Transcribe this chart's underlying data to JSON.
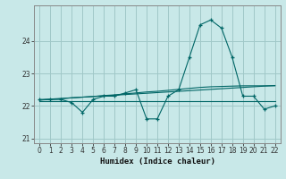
{
  "title": "",
  "xlabel": "Humidex (Indice chaleur)",
  "ylabel": "",
  "bg_color": "#c8e8e8",
  "line_color": "#006666",
  "grid_color": "#a0c8c8",
  "xlim": [
    -0.5,
    22.5
  ],
  "ylim": [
    20.85,
    25.1
  ],
  "yticks": [
    21,
    22,
    23,
    24
  ],
  "xticks": [
    0,
    1,
    2,
    3,
    4,
    5,
    6,
    7,
    8,
    9,
    10,
    11,
    12,
    13,
    14,
    15,
    16,
    17,
    18,
    19,
    20,
    21,
    22
  ],
  "main_series": [
    22.2,
    22.2,
    22.2,
    22.1,
    21.8,
    22.2,
    22.3,
    22.3,
    22.4,
    22.5,
    21.6,
    21.6,
    22.3,
    22.5,
    23.5,
    24.5,
    24.65,
    24.4,
    23.5,
    22.3,
    22.3,
    21.9,
    22.0
  ],
  "trend1": [
    22.18,
    22.21,
    22.23,
    22.25,
    22.27,
    22.29,
    22.31,
    22.33,
    22.35,
    22.37,
    22.39,
    22.41,
    22.43,
    22.45,
    22.47,
    22.49,
    22.51,
    22.53,
    22.55,
    22.57,
    22.59,
    22.61,
    22.63
  ],
  "trend2": [
    22.15,
    22.15,
    22.15,
    22.15,
    22.15,
    22.15,
    22.15,
    22.15,
    22.15,
    22.15,
    22.15,
    22.15,
    22.15,
    22.15,
    22.15,
    22.15,
    22.15,
    22.15,
    22.15,
    22.15,
    22.15,
    22.15,
    22.15
  ],
  "trend3": [
    22.18,
    22.2,
    22.22,
    22.25,
    22.27,
    22.29,
    22.32,
    22.34,
    22.37,
    22.4,
    22.43,
    22.45,
    22.48,
    22.51,
    22.54,
    22.57,
    22.59,
    22.6,
    22.61,
    22.62,
    22.62,
    22.62,
    22.62
  ]
}
